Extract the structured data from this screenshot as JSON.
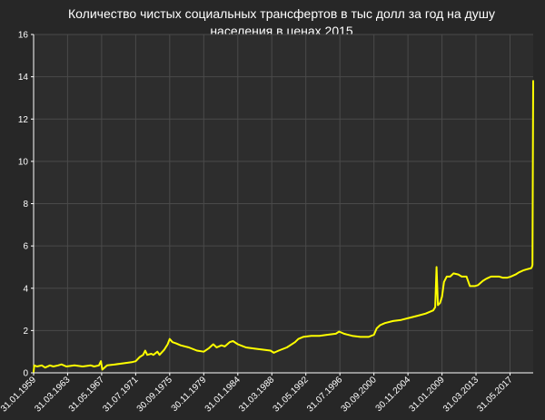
{
  "chart_data": {
    "type": "line",
    "title_lines": [
      "Количество чистых социальных трансфертов в тыс долл за год на душу",
      "населения в ценах 2015"
    ],
    "xlabel": "",
    "ylabel": "",
    "x_range": [
      "1959-01-31",
      "2020-03-31"
    ],
    "ylim": [
      0,
      16
    ],
    "y_ticks": [
      0,
      2,
      4,
      6,
      8,
      10,
      12,
      14,
      16
    ],
    "x_ticks": [
      {
        "date": "1959-01-31",
        "label": "31.01.1959"
      },
      {
        "date": "1963-03-31",
        "label": "31.03.1963"
      },
      {
        "date": "1967-05-31",
        "label": "31.05.1967"
      },
      {
        "date": "1971-07-31",
        "label": "31.07.1971"
      },
      {
        "date": "1975-09-30",
        "label": "30.09.1975"
      },
      {
        "date": "1979-11-30",
        "label": "30.11.1979"
      },
      {
        "date": "1984-01-31",
        "label": "31.01.1984"
      },
      {
        "date": "1988-03-31",
        "label": "31.03.1988"
      },
      {
        "date": "1992-05-31",
        "label": "31.05.1992"
      },
      {
        "date": "1996-07-31",
        "label": "31.07.1996"
      },
      {
        "date": "2000-09-30",
        "label": "30.09.2000"
      },
      {
        "date": "2004-11-30",
        "label": "30.11.2004"
      },
      {
        "date": "2009-01-31",
        "label": "31.01.2009"
      },
      {
        "date": "2013-03-31",
        "label": "31.03.2013"
      },
      {
        "date": "2017-05-31",
        "label": "31.05.2017"
      }
    ],
    "grid": true,
    "legend": "none",
    "series": [
      {
        "color": "#ffff00",
        "points": [
          [
            "1959-01-31",
            0.05
          ],
          [
            "1959-02-28",
            0.35
          ],
          [
            "1959-06-30",
            0.3
          ],
          [
            "1960-01-31",
            0.35
          ],
          [
            "1960-06-30",
            0.25
          ],
          [
            "1961-01-31",
            0.35
          ],
          [
            "1961-06-30",
            0.3
          ],
          [
            "1962-01-31",
            0.35
          ],
          [
            "1962-06-30",
            0.4
          ],
          [
            "1963-01-31",
            0.3
          ],
          [
            "1964-01-31",
            0.35
          ],
          [
            "1965-01-31",
            0.3
          ],
          [
            "1966-01-31",
            0.35
          ],
          [
            "1966-06-30",
            0.3
          ],
          [
            "1967-01-31",
            0.35
          ],
          [
            "1967-04-30",
            0.55
          ],
          [
            "1967-06-30",
            0.15
          ],
          [
            "1968-01-31",
            0.35
          ],
          [
            "1969-01-31",
            0.4
          ],
          [
            "1970-01-31",
            0.45
          ],
          [
            "1971-01-31",
            0.5
          ],
          [
            "1971-07-31",
            0.55
          ],
          [
            "1972-01-31",
            0.75
          ],
          [
            "1972-06-30",
            0.85
          ],
          [
            "1972-09-30",
            1.05
          ],
          [
            "1972-12-31",
            0.85
          ],
          [
            "1973-06-30",
            0.9
          ],
          [
            "1973-09-30",
            0.85
          ],
          [
            "1974-03-31",
            1.0
          ],
          [
            "1974-06-30",
            0.85
          ],
          [
            "1975-01-31",
            1.1
          ],
          [
            "1975-06-30",
            1.35
          ],
          [
            "1975-09-30",
            1.6
          ],
          [
            "1976-01-31",
            1.45
          ],
          [
            "1976-06-30",
            1.4
          ],
          [
            "1977-01-31",
            1.3
          ],
          [
            "1978-01-31",
            1.2
          ],
          [
            "1979-01-31",
            1.05
          ],
          [
            "1979-11-30",
            1.0
          ],
          [
            "1980-06-30",
            1.15
          ],
          [
            "1981-01-31",
            1.35
          ],
          [
            "1981-06-30",
            1.2
          ],
          [
            "1982-01-31",
            1.3
          ],
          [
            "1982-06-30",
            1.25
          ],
          [
            "1983-01-31",
            1.45
          ],
          [
            "1983-06-30",
            1.5
          ],
          [
            "1984-01-31",
            1.35
          ],
          [
            "1985-01-31",
            1.2
          ],
          [
            "1986-01-31",
            1.15
          ],
          [
            "1987-01-31",
            1.1
          ],
          [
            "1988-01-31",
            1.05
          ],
          [
            "1988-06-30",
            0.95
          ],
          [
            "1989-01-31",
            1.05
          ],
          [
            "1990-01-31",
            1.2
          ],
          [
            "1991-01-31",
            1.45
          ],
          [
            "1991-06-30",
            1.6
          ],
          [
            "1992-01-31",
            1.7
          ],
          [
            "1993-01-31",
            1.75
          ],
          [
            "1994-01-31",
            1.75
          ],
          [
            "1995-01-31",
            1.8
          ],
          [
            "1996-01-31",
            1.85
          ],
          [
            "1996-06-30",
            1.95
          ],
          [
            "1997-01-31",
            1.85
          ],
          [
            "1998-01-31",
            1.75
          ],
          [
            "1999-01-31",
            1.7
          ],
          [
            "2000-01-31",
            1.7
          ],
          [
            "2000-09-30",
            1.8
          ],
          [
            "2001-01-31",
            2.1
          ],
          [
            "2001-06-30",
            2.25
          ],
          [
            "2002-01-31",
            2.35
          ],
          [
            "2003-01-31",
            2.45
          ],
          [
            "2004-01-31",
            2.5
          ],
          [
            "2005-01-31",
            2.6
          ],
          [
            "2006-01-31",
            2.7
          ],
          [
            "2007-01-31",
            2.8
          ],
          [
            "2007-12-31",
            2.95
          ],
          [
            "2008-03-31",
            3.1
          ],
          [
            "2008-05-31",
            5.0
          ],
          [
            "2008-07-31",
            3.2
          ],
          [
            "2008-10-31",
            3.3
          ],
          [
            "2009-01-31",
            3.6
          ],
          [
            "2009-04-30",
            4.3
          ],
          [
            "2009-08-31",
            4.55
          ],
          [
            "2010-01-31",
            4.55
          ],
          [
            "2010-06-30",
            4.7
          ],
          [
            "2011-01-31",
            4.65
          ],
          [
            "2011-06-30",
            4.55
          ],
          [
            "2012-01-31",
            4.55
          ],
          [
            "2012-06-30",
            4.1
          ],
          [
            "2013-01-31",
            4.1
          ],
          [
            "2013-06-30",
            4.15
          ],
          [
            "2014-01-31",
            4.35
          ],
          [
            "2014-06-30",
            4.45
          ],
          [
            "2015-01-31",
            4.55
          ],
          [
            "2016-01-31",
            4.55
          ],
          [
            "2016-06-30",
            4.5
          ],
          [
            "2017-01-31",
            4.5
          ],
          [
            "2017-06-30",
            4.55
          ],
          [
            "2018-01-31",
            4.65
          ],
          [
            "2018-06-30",
            4.75
          ],
          [
            "2019-01-31",
            4.85
          ],
          [
            "2019-06-30",
            4.9
          ],
          [
            "2019-12-31",
            4.95
          ],
          [
            "2020-01-31",
            5.0
          ],
          [
            "2020-02-29",
            5.1
          ],
          [
            "2020-03-31",
            13.8
          ]
        ]
      }
    ]
  },
  "colors": {
    "background": "#272727",
    "plot_background": "#2d2d2d",
    "grid": "#4a4a4a",
    "axis": "#ffffff",
    "line": "#ffff00"
  }
}
